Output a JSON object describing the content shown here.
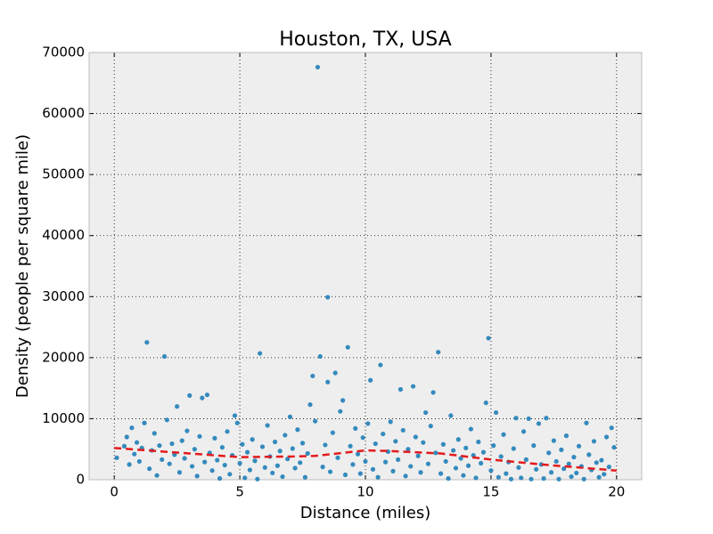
{
  "chart_data": {
    "type": "scatter",
    "title": "Houston, TX, USA",
    "x_label": "Distance (miles)",
    "y_label": "Density (people per square mile)",
    "xlim": [
      -1,
      21
    ],
    "xticks": [
      0,
      5,
      10,
      15,
      20
    ],
    "ylim": [
      0,
      70000
    ],
    "yticks": [
      0,
      10000,
      20000,
      30000,
      40000,
      50000,
      60000,
      70000
    ],
    "grid": true,
    "points": {
      "color": "#348abd",
      "x": [
        8.1,
        8.5,
        1.3,
        2.0,
        5.8,
        8.2,
        9.3,
        10.6,
        12.9,
        14.9,
        10.2,
        11.4,
        11.9,
        12.7,
        8.5,
        8.8,
        7.9,
        3.0,
        3.5,
        3.7,
        9.1,
        7.8,
        12.4,
        14.8,
        15.2,
        4.8,
        2.5,
        7.0,
        16.0,
        16.5,
        17.2,
        18.8,
        19.8,
        0.1,
        0.4,
        0.5,
        0.6,
        0.7,
        0.8,
        0.9,
        1.0,
        1.1,
        1.2,
        1.4,
        1.5,
        1.6,
        1.7,
        1.8,
        1.9,
        2.1,
        2.2,
        2.3,
        2.4,
        2.6,
        2.7,
        2.8,
        2.9,
        3.1,
        3.2,
        3.3,
        3.4,
        3.6,
        3.8,
        3.9,
        4.0,
        4.1,
        4.2,
        4.3,
        4.4,
        4.5,
        4.6,
        4.7,
        4.9,
        5.0,
        5.1,
        5.2,
        5.3,
        5.4,
        5.5,
        5.6,
        5.7,
        5.9,
        6.0,
        6.1,
        6.2,
        6.3,
        6.4,
        6.5,
        6.6,
        6.7,
        6.8,
        6.9,
        7.1,
        7.2,
        7.3,
        7.4,
        7.5,
        7.6,
        7.7,
        8.0,
        8.3,
        8.4,
        8.6,
        8.7,
        8.9,
        9.0,
        9.2,
        9.4,
        9.5,
        9.6,
        9.7,
        9.8,
        9.9,
        10.0,
        10.1,
        10.3,
        10.4,
        10.5,
        10.7,
        10.8,
        10.9,
        11.0,
        11.1,
        11.2,
        11.3,
        11.5,
        11.6,
        11.7,
        11.8,
        12.0,
        12.1,
        12.2,
        12.3,
        12.5,
        12.6,
        12.8,
        13.0,
        13.1,
        13.2,
        13.3,
        13.4,
        13.5,
        13.6,
        13.7,
        13.8,
        13.9,
        14.0,
        14.1,
        14.2,
        14.3,
        14.4,
        14.5,
        14.6,
        14.7,
        15.0,
        15.1,
        15.3,
        15.4,
        15.5,
        15.6,
        15.7,
        15.8,
        15.9,
        16.1,
        16.2,
        16.3,
        16.4,
        16.6,
        16.7,
        16.8,
        16.9,
        17.0,
        17.1,
        17.3,
        17.4,
        17.5,
        17.6,
        17.7,
        17.8,
        17.9,
        18.0,
        18.1,
        18.2,
        18.3,
        18.4,
        18.5,
        18.6,
        18.7,
        18.9,
        19.0,
        19.1,
        19.2,
        19.3,
        19.4,
        19.5,
        19.6,
        19.7,
        19.9
      ],
      "y": [
        67600,
        29900,
        22500,
        20200,
        20700,
        20200,
        21700,
        18800,
        20900,
        23200,
        16300,
        14800,
        15300,
        14300,
        16000,
        17500,
        17000,
        13800,
        13400,
        13900,
        13000,
        12300,
        11000,
        12600,
        11000,
        10500,
        12000,
        10300,
        10100,
        10000,
        10100,
        9300,
        8500,
        3600,
        5500,
        7000,
        2500,
        8500,
        4200,
        6100,
        3000,
        5200,
        9300,
        1800,
        4800,
        7600,
        700,
        5600,
        3300,
        9800,
        2600,
        5900,
        4100,
        1200,
        6400,
        3500,
        8000,
        2200,
        5000,
        600,
        7100,
        2900,
        4400,
        1500,
        6800,
        3200,
        200,
        5300,
        2400,
        7900,
        900,
        4000,
        9300,
        2700,
        5800,
        300,
        4500,
        1600,
        6600,
        3100,
        100,
        5400,
        2000,
        8900,
        3800,
        1100,
        6200,
        2300,
        4700,
        500,
        7300,
        3400,
        5100,
        1900,
        8200,
        2800,
        6000,
        400,
        4300,
        9600,
        2100,
        5700,
        1300,
        7700,
        3600,
        11200,
        800,
        5500,
        2500,
        8400,
        4200,
        1000,
        6900,
        3000,
        9200,
        1700,
        5900,
        400,
        7500,
        2900,
        4600,
        9500,
        1400,
        6300,
        3300,
        8100,
        600,
        5000,
        2200,
        7000,
        3900,
        1200,
        6100,
        2600,
        8800,
        4400,
        1000,
        5800,
        3000,
        200,
        10500,
        4800,
        1900,
        6600,
        3500,
        700,
        5200,
        2300,
        8300,
        4000,
        300,
        6200,
        2700,
        4500,
        1500,
        5600,
        400,
        3800,
        7400,
        1000,
        2900,
        100,
        5100,
        2000,
        300,
        7900,
        3300,
        100,
        5600,
        1700,
        9200,
        2500,
        200,
        4400,
        1200,
        6400,
        3000,
        100,
        4900,
        1800,
        7200,
        2600,
        500,
        3700,
        1100,
        5500,
        2200,
        100,
        4100,
        1600,
        6300,
        2800,
        400,
        3200,
        900,
        7000,
        2100,
        5300
      ]
    },
    "trend": {
      "color": "#e41a1c",
      "x": [
        0,
        2,
        5,
        7,
        8,
        10,
        11,
        13,
        15,
        17,
        20
      ],
      "y": [
        5200,
        4600,
        3700,
        3800,
        3900,
        4800,
        4700,
        4300,
        3300,
        2500,
        1500
      ]
    }
  }
}
